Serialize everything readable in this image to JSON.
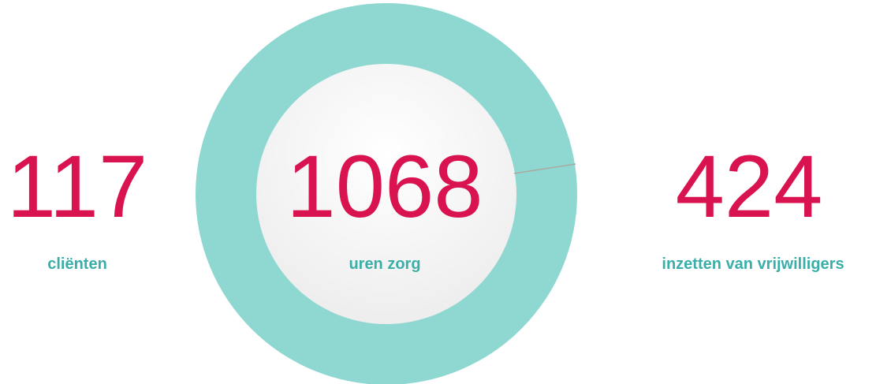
{
  "stats": [
    {
      "value": "117",
      "label": "cliënten"
    },
    {
      "value": "1068",
      "label": "uren zorg"
    },
    {
      "value": "424",
      "label": "inzetten van vrijwilligers"
    }
  ]
}
